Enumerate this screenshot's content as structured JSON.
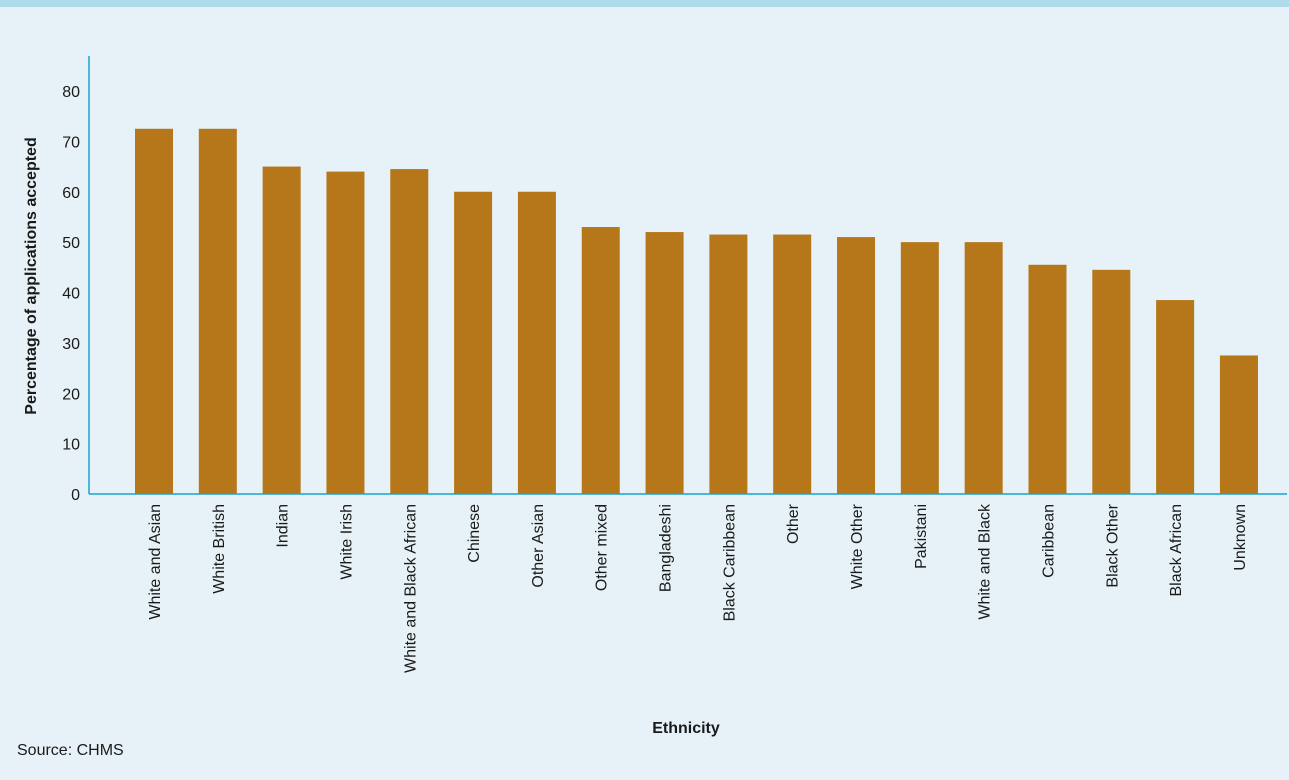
{
  "chart_data": {
    "type": "bar",
    "xlabel": "Ethnicity",
    "ylabel": "Percentage of applications accepted",
    "ylim": [
      0,
      85
    ],
    "yticks": [
      0,
      10,
      20,
      30,
      40,
      50,
      60,
      70,
      80
    ],
    "grid": false,
    "bar_color": "#b5771a",
    "axis_color": "#1aa3cf",
    "categories": [
      "White and Asian",
      "White British",
      "Indian",
      "White Irish",
      "White and Black African",
      "Chinese",
      "Other Asian",
      "Other mixed",
      "Bangladeshi",
      "Black Caribbean",
      "Other",
      "White Other",
      "Pakistani",
      "White and Black",
      "Caribbean",
      "Black Other",
      "Black African",
      "Unknown"
    ],
    "values": [
      72.5,
      72.5,
      65,
      64,
      64.5,
      60,
      60,
      53,
      52,
      51.5,
      51.5,
      51,
      50,
      50,
      45.5,
      44.5,
      38.5,
      27.5
    ]
  },
  "source": "Source: CHMS"
}
